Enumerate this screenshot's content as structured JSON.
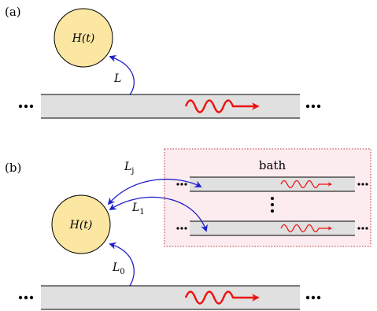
{
  "panel_a": {
    "label": "(a)",
    "system": "H(t)",
    "coupling": "L"
  },
  "panel_b": {
    "label": "(b)",
    "system": "H(t)",
    "bath_label": "bath",
    "coupling_j": "L",
    "coupling_j_sub": "j",
    "coupling_1": "L",
    "coupling_1_sub": "1",
    "coupling_0": "L",
    "coupling_0_sub": "0"
  },
  "colors": {
    "system_fill": "#fbe6a2",
    "system_stroke": "#000000",
    "waveguide_fill": "#e0e0e0",
    "wave": "#ee1111",
    "coupling_arrow": "#1f1fcc",
    "bath_fill": "#fdecef",
    "bath_border": "#b03030"
  }
}
